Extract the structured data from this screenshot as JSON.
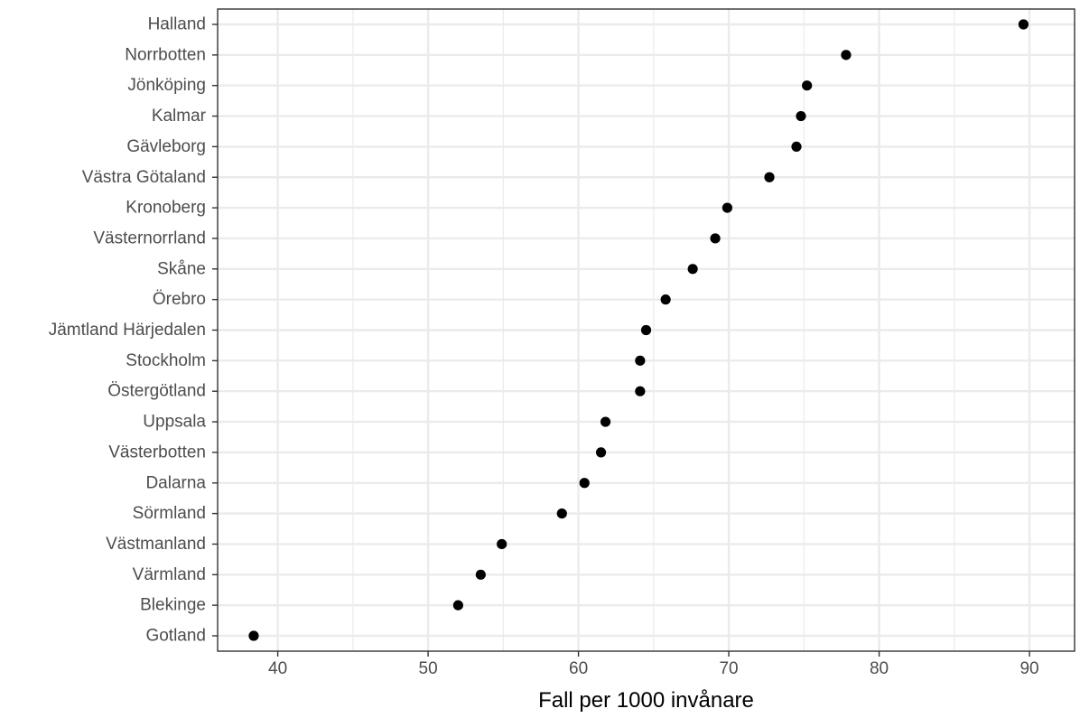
{
  "chart_data": {
    "type": "scatter",
    "title": "",
    "xlabel": "Fall per 1000 invånare",
    "ylabel": "",
    "xlim": [
      36,
      93
    ],
    "x_ticks": [
      40,
      50,
      60,
      70,
      80,
      90
    ],
    "grid": true,
    "legend": "none",
    "colors": {
      "point": "#000000",
      "grid": "#ebebeb",
      "panel_border": "#333333",
      "tick_label": "#4d4d4d"
    },
    "categories": [
      "Halland",
      "Norrbotten",
      "Jönköping",
      "Kalmar",
      "Gävleborg",
      "Västra Götaland",
      "Kronoberg",
      "Västernorrland",
      "Skåne",
      "Örebro",
      "Jämtland Härjedalen",
      "Stockholm",
      "Östergötland",
      "Uppsala",
      "Västerbotten",
      "Dalarna",
      "Sörmland",
      "Västmanland",
      "Värmland",
      "Blekinge",
      "Gotland"
    ],
    "values": [
      89.6,
      77.8,
      75.2,
      74.8,
      74.5,
      72.7,
      69.9,
      69.1,
      67.6,
      65.8,
      64.5,
      64.1,
      64.1,
      61.8,
      61.5,
      60.4,
      58.9,
      54.9,
      53.5,
      52.0,
      38.4
    ]
  }
}
